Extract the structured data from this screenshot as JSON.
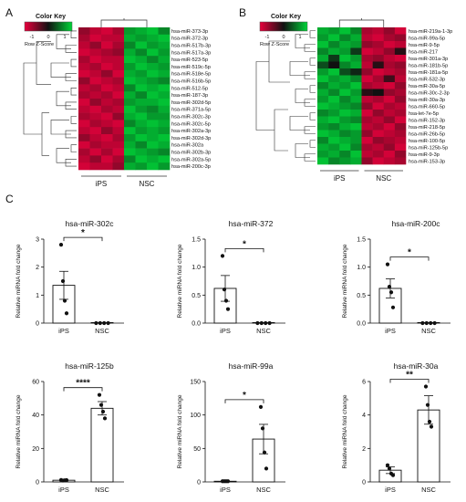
{
  "panel_letters": [
    "A",
    "B",
    "C"
  ],
  "color_key": {
    "title": "Color Key",
    "ticks": [
      "-1",
      "0",
      "1"
    ],
    "label": "Row Z-Score",
    "low_color": "#e8003c",
    "mid_color": "#111111",
    "high_color": "#00d438"
  },
  "chart_data": [
    {
      "type": "heatmap",
      "panel": "A",
      "groups": [
        "iPS",
        "NSC"
      ],
      "rows": [
        "hsa-miR-373-3p",
        "hsa-miR-372-3p",
        "hsa-miR-517b-3p",
        "hsa-miR-517a-3p",
        "hsa-miR-523-5p",
        "hsa-miR-519c-5p",
        "hsa-miR-518e-5p",
        "hsa-miR-516b-5p",
        "hsa-miR-512-5p",
        "hsa-miR-187-3p",
        "hsa-miR-302d-5p",
        "hsa-miR-371a-5p",
        "hsa-miR-302c-3p",
        "hsa-miR-302c-5p",
        "hsa-miR-302a-3p",
        "hsa-miR-302d-3p",
        "hsa-miR-302a",
        "hsa-miR-302b-3p",
        "hsa-miR-302a-5p",
        "hsa-miR-200c-3p"
      ],
      "values": [
        [
          -0.6,
          -0.8,
          -0.9,
          -0.7,
          0.7,
          0.8,
          0.9,
          0.6
        ],
        [
          -0.7,
          -0.9,
          -0.8,
          -0.8,
          0.8,
          0.7,
          0.8,
          0.9
        ],
        [
          -0.8,
          -0.6,
          -0.9,
          -0.7,
          0.6,
          0.9,
          0.7,
          0.8
        ],
        [
          -0.9,
          -0.8,
          -0.7,
          -0.6,
          0.8,
          0.6,
          0.9,
          0.7
        ],
        [
          -0.7,
          -0.9,
          -0.8,
          -0.8,
          0.9,
          0.8,
          0.6,
          0.8
        ],
        [
          -0.8,
          -0.7,
          -0.9,
          -0.8,
          0.7,
          0.9,
          0.8,
          0.7
        ],
        [
          -0.9,
          -0.8,
          -0.6,
          -0.9,
          0.8,
          0.7,
          0.9,
          0.8
        ],
        [
          -0.6,
          -0.9,
          -0.8,
          -0.7,
          0.9,
          0.8,
          0.7,
          0.6
        ],
        [
          -0.8,
          -0.7,
          -0.9,
          -0.8,
          0.6,
          0.9,
          0.8,
          0.9
        ],
        [
          -0.7,
          -0.8,
          -0.7,
          -0.9,
          0.8,
          0.6,
          0.9,
          0.8
        ],
        [
          -0.9,
          -0.6,
          -0.8,
          -0.7,
          0.7,
          0.8,
          0.8,
          0.9
        ],
        [
          -0.8,
          -0.9,
          -0.7,
          -0.8,
          0.9,
          0.7,
          0.6,
          0.8
        ],
        [
          -0.7,
          -0.8,
          -0.9,
          -0.6,
          0.8,
          0.9,
          0.7,
          0.7
        ],
        [
          -0.9,
          -0.7,
          -0.8,
          -0.9,
          0.6,
          0.8,
          0.9,
          0.8
        ],
        [
          -0.8,
          -0.9,
          -0.6,
          -0.8,
          0.9,
          0.7,
          0.8,
          0.7
        ],
        [
          -0.6,
          -0.8,
          -0.9,
          -0.7,
          0.7,
          0.9,
          0.8,
          0.9
        ],
        [
          -0.9,
          -0.7,
          -0.8,
          -0.8,
          0.8,
          0.6,
          0.9,
          0.8
        ],
        [
          -0.7,
          -0.9,
          -0.7,
          -0.9,
          0.9,
          0.8,
          0.7,
          0.6
        ],
        [
          -0.8,
          -0.6,
          -0.9,
          -0.7,
          0.6,
          0.9,
          0.8,
          0.9
        ],
        [
          -0.9,
          -0.8,
          -0.8,
          -0.6,
          0.8,
          0.7,
          0.9,
          0.7
        ]
      ]
    },
    {
      "type": "heatmap",
      "panel": "B",
      "groups": [
        "iPS",
        "NSC"
      ],
      "rows": [
        "hsa-miR-219a-1-3p",
        "hsa-miR-99a-5p",
        "hsa-miR-9-5p",
        "hsa-miR-217",
        "hsa-miR-301a-3p",
        "hsa-miR-181b-5p",
        "hsa-miR-181a-5p",
        "hsa-miR-532-3p",
        "hsa-miR-30a-5p",
        "hsa-miR-30c-2-3p",
        "hsa-miR-30a-3p",
        "hsa-miR-660-5p",
        "hsa-let-7e-5p",
        "hsa-miR-152-3p",
        "hsa-miR-218-5p",
        "hsa-miR-26b-5p",
        "hsa-miR-100-5p",
        "hsa-miR-125b-5p",
        "hsa-miR-9-3p",
        "hsa-miR-153-3p"
      ],
      "values": [
        [
          0.8,
          0.7,
          0.9,
          0.6,
          -0.7,
          -0.8,
          -0.6,
          -0.9
        ],
        [
          0.7,
          0.9,
          0.6,
          0.8,
          -0.8,
          -0.9,
          -0.7,
          -0.6
        ],
        [
          0.9,
          0.6,
          0.8,
          0.7,
          -0.6,
          -0.7,
          -0.9,
          -0.8
        ],
        [
          0.6,
          0.8,
          0.7,
          0.2,
          -0.9,
          -0.8,
          -0.6,
          -0.1
        ],
        [
          0.8,
          0.2,
          0.9,
          0.7,
          -0.7,
          -0.6,
          -0.8,
          -0.9
        ],
        [
          0.3,
          0.0,
          0.6,
          0.8,
          -0.8,
          -0.1,
          -0.7,
          -0.6
        ],
        [
          0.7,
          0.9,
          0.3,
          0.1,
          -0.6,
          -0.9,
          -0.8,
          -0.7
        ],
        [
          0.9,
          0.7,
          0.8,
          0.6,
          -0.9,
          -0.7,
          -0.2,
          -0.8
        ],
        [
          0.6,
          0.8,
          0.7,
          0.9,
          -0.7,
          -0.8,
          -0.9,
          -0.6
        ],
        [
          0.8,
          0.6,
          0.9,
          0.7,
          -0.1,
          0.0,
          -0.6,
          -0.7
        ],
        [
          0.7,
          0.9,
          0.6,
          0.8,
          -0.8,
          -0.7,
          -0.9,
          -0.6
        ],
        [
          0.9,
          0.8,
          0.7,
          0.6,
          -0.6,
          -0.9,
          -0.7,
          -0.8
        ],
        [
          0.6,
          0.7,
          0.9,
          0.8,
          -0.9,
          -0.6,
          -0.8,
          -0.7
        ],
        [
          0.8,
          0.9,
          0.7,
          0.6,
          -0.7,
          -0.8,
          -0.6,
          -0.9
        ],
        [
          0.7,
          0.6,
          0.8,
          0.9,
          -0.8,
          -0.7,
          -0.9,
          -0.6
        ],
        [
          0.9,
          0.8,
          0.6,
          0.7,
          -0.6,
          -0.9,
          -0.8,
          -0.7
        ],
        [
          0.6,
          0.9,
          0.8,
          0.7,
          -0.9,
          -0.6,
          -0.7,
          -0.8
        ],
        [
          0.8,
          0.7,
          0.9,
          0.6,
          -0.7,
          -0.8,
          -0.6,
          -0.9
        ],
        [
          0.7,
          0.8,
          0.6,
          0.9,
          -0.8,
          -0.7,
          -0.9,
          -0.6
        ],
        [
          0.9,
          0.6,
          0.7,
          0.8,
          -0.6,
          -0.9,
          -0.8,
          -0.7
        ]
      ]
    },
    {
      "type": "bar",
      "panel": "C",
      "title": "hsa-miR-302c",
      "ylabel": "Relative miRNA fold change",
      "categories": [
        "iPS",
        "NSC"
      ],
      "values": [
        1.35,
        0.0
      ],
      "sem": [
        0.5,
        0.0
      ],
      "points": [
        [
          2.8,
          1.5,
          0.8,
          0.35
        ],
        [
          0.0,
          0.0,
          0.0,
          0.0
        ]
      ],
      "ylim": [
        0,
        3
      ],
      "yticks": [
        "0",
        "1",
        "2",
        "3"
      ],
      "significance": "*"
    },
    {
      "type": "bar",
      "panel": "C",
      "title": "hsa-miR-372",
      "ylabel": "Relative miRNA fold change",
      "categories": [
        "iPS",
        "NSC"
      ],
      "values": [
        0.62,
        0.0
      ],
      "sem": [
        0.23,
        0.0
      ],
      "points": [
        [
          1.2,
          0.6,
          0.4,
          0.25
        ],
        [
          0.0,
          0.0,
          0.0,
          0.0
        ]
      ],
      "ylim": [
        0,
        1.5
      ],
      "yticks": [
        "0.0",
        "0.5",
        "1.0",
        "1.5"
      ],
      "significance": "*"
    },
    {
      "type": "bar",
      "panel": "C",
      "title": "hsa-miR-200c",
      "ylabel": "Relative miRNA fold change",
      "categories": [
        "iPS",
        "NSC"
      ],
      "values": [
        0.62,
        0.0
      ],
      "sem": [
        0.17,
        0.0
      ],
      "points": [
        [
          1.05,
          0.65,
          0.55,
          0.28
        ],
        [
          0.0,
          0.0,
          0.0,
          0.0
        ]
      ],
      "ylim": [
        0,
        1.5
      ],
      "yticks": [
        "0.0",
        "0.5",
        "1.0",
        "1.5"
      ],
      "significance": "*"
    },
    {
      "type": "bar",
      "panel": "C",
      "title": "hsa-miR-125b",
      "ylabel": "Relative miRNA fold change",
      "categories": [
        "iPS",
        "NSC"
      ],
      "values": [
        1.0,
        44.0
      ],
      "sem": [
        0.3,
        4.0
      ],
      "points": [
        [
          1.2,
          0.8,
          1.0,
          1.1
        ],
        [
          52.0,
          46.0,
          42.0,
          38.0
        ]
      ],
      "ylim": [
        0,
        60
      ],
      "yticks": [
        "0",
        "20",
        "40",
        "60"
      ],
      "significance": "****"
    },
    {
      "type": "bar",
      "panel": "C",
      "title": "hsa-miR-99a",
      "ylabel": "Relative miRNA fold change",
      "categories": [
        "iPS",
        "NSC"
      ],
      "values": [
        1.0,
        64.0
      ],
      "sem": [
        0.2,
        22.0
      ],
      "points": [
        [
          1.0,
          1.0,
          1.0,
          1.0
        ],
        [
          112.0,
          80.0,
          44.0,
          20.0
        ]
      ],
      "ylim": [
        0,
        150
      ],
      "yticks": [
        "0",
        "50",
        "100",
        "150"
      ],
      "significance": "*"
    },
    {
      "type": "bar",
      "panel": "C",
      "title": "hsa-miR-30a",
      "ylabel": "Relative miRNA fold change",
      "categories": [
        "iPS",
        "NSC"
      ],
      "values": [
        0.7,
        4.3
      ],
      "sem": [
        0.2,
        0.85
      ],
      "points": [
        [
          1.0,
          0.8,
          0.5,
          0.4
        ],
        [
          5.7,
          4.6,
          3.6,
          3.3
        ]
      ],
      "ylim": [
        0,
        6
      ],
      "yticks": [
        "0",
        "2",
        "4",
        "6"
      ],
      "significance": "**"
    }
  ]
}
